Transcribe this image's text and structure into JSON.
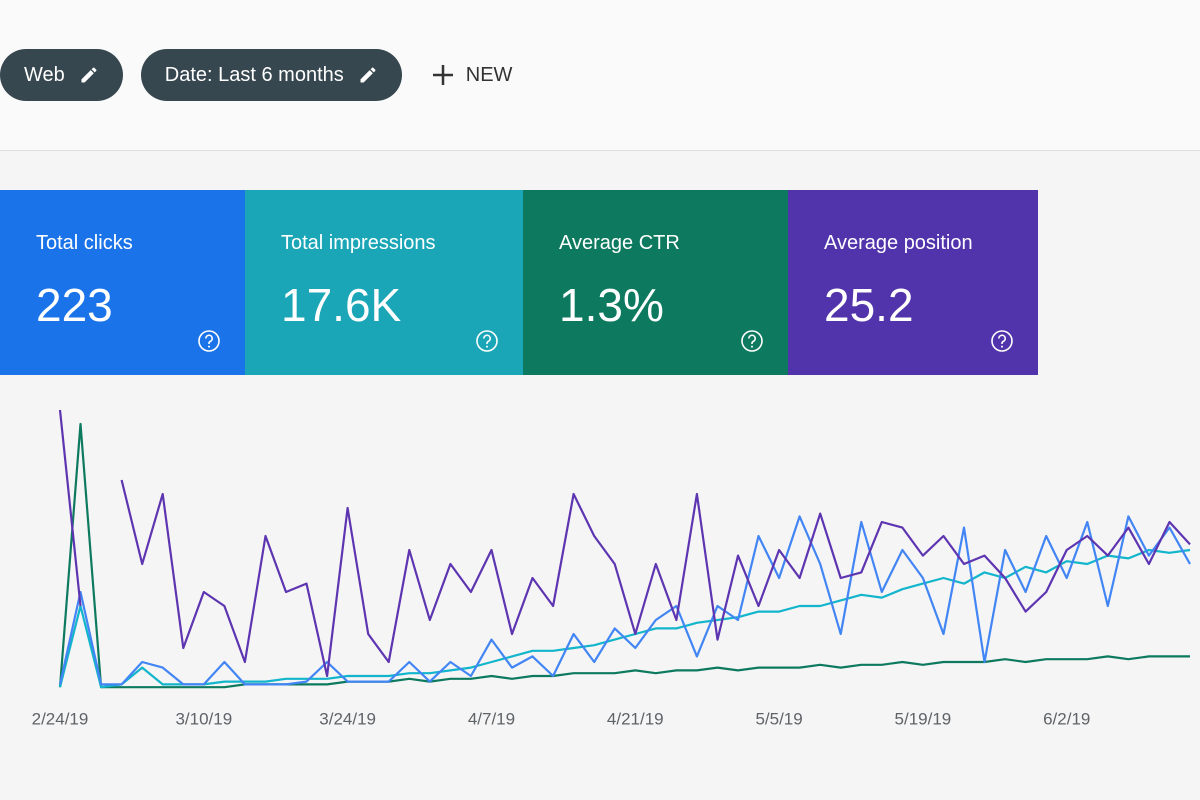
{
  "filters": [
    {
      "label": "Web"
    },
    {
      "label": "Date: Last 6 months"
    }
  ],
  "new_button": "NEW",
  "metrics": [
    {
      "label": "Total clicks",
      "value": "223",
      "color": "#1a73e8"
    },
    {
      "label": "Total impressions",
      "value": "17.6K",
      "color": "#1aa6b7"
    },
    {
      "label": "Average CTR",
      "value": "1.3%",
      "color": "#0d7a5f"
    },
    {
      "label": "Average position",
      "value": "25.2",
      "color": "#5133ab"
    }
  ],
  "chart_data": {
    "type": "line",
    "categories": [
      "2/24/19",
      null,
      null,
      null,
      null,
      null,
      null,
      "3/10/19",
      null,
      null,
      null,
      null,
      null,
      null,
      "3/24/19",
      null,
      null,
      null,
      null,
      null,
      null,
      "4/7/19",
      null,
      null,
      null,
      null,
      null,
      null,
      "4/21/19",
      null,
      null,
      null,
      null,
      null,
      null,
      "5/5/19",
      null,
      null,
      null,
      null,
      null,
      null,
      "5/19/19",
      null,
      null,
      null,
      null,
      null,
      null,
      "6/2/19",
      null,
      null,
      null,
      null,
      null,
      null
    ],
    "ylim": [
      0,
      100
    ],
    "series": [
      {
        "color": "#0d7a5f",
        "values": [
          1,
          95,
          1,
          1,
          1,
          1,
          1,
          1,
          1,
          2,
          2,
          2,
          2,
          2,
          3,
          3,
          3,
          4,
          3,
          4,
          4,
          5,
          4,
          5,
          5,
          6,
          6,
          6,
          7,
          6,
          7,
          7,
          8,
          7,
          8,
          8,
          8,
          9,
          8,
          9,
          9,
          10,
          9,
          10,
          10,
          10,
          11,
          10,
          11,
          11,
          11,
          12,
          11,
          12,
          12,
          12
        ]
      },
      {
        "color": "#12b5cb",
        "values": [
          1,
          30,
          1,
          2,
          8,
          2,
          2,
          2,
          3,
          3,
          3,
          4,
          4,
          4,
          5,
          5,
          5,
          6,
          6,
          7,
          8,
          10,
          12,
          14,
          14,
          15,
          16,
          18,
          20,
          22,
          22,
          24,
          25,
          26,
          28,
          28,
          30,
          30,
          32,
          34,
          33,
          36,
          38,
          40,
          38,
          42,
          40,
          44,
          42,
          46,
          45,
          48,
          47,
          50,
          49,
          50
        ]
      },
      {
        "color": "#4285f4",
        "values": [
          2,
          35,
          2,
          2,
          10,
          8,
          2,
          2,
          10,
          2,
          2,
          2,
          3,
          10,
          3,
          3,
          3,
          10,
          3,
          10,
          5,
          18,
          8,
          12,
          5,
          20,
          10,
          22,
          15,
          25,
          30,
          12,
          30,
          25,
          55,
          40,
          62,
          45,
          20,
          60,
          35,
          50,
          40,
          20,
          58,
          10,
          50,
          35,
          55,
          40,
          60,
          30,
          62,
          48,
          58,
          45
        ]
      },
      {
        "color": "#5e35b1",
        "values": [
          100,
          30,
          null,
          75,
          45,
          70,
          15,
          35,
          30,
          10,
          55,
          35,
          38,
          5,
          65,
          20,
          10,
          50,
          25,
          45,
          35,
          50,
          20,
          40,
          30,
          70,
          55,
          45,
          20,
          45,
          25,
          70,
          18,
          48,
          30,
          50,
          40,
          63,
          40,
          42,
          60,
          58,
          48,
          55,
          45,
          48,
          40,
          28,
          35,
          50,
          55,
          48,
          58,
          45,
          60,
          52
        ]
      }
    ]
  }
}
